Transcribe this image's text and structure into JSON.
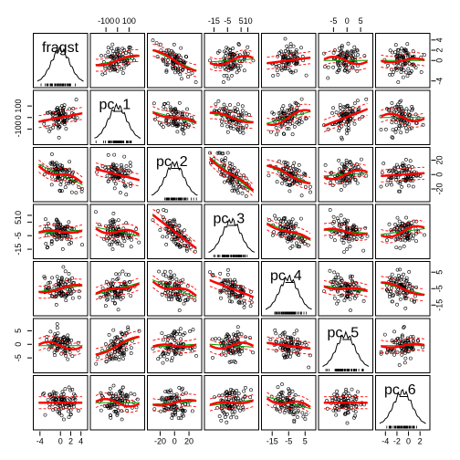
{
  "chart_data": {
    "type": "scatter",
    "variables": [
      "fragst",
      "pc_1",
      "pc_2",
      "pc_3",
      "pc_4",
      "pc_5",
      "pc_6"
    ],
    "axes": [
      {
        "ticks": [
          -4,
          0,
          2,
          4
        ],
        "range": [
          -4.5,
          4.5
        ]
      },
      {
        "ticks": [
          -100,
          0,
          100
        ],
        "range": [
          -200,
          200
        ]
      },
      {
        "ticks": [
          -20,
          0,
          20
        ],
        "range": [
          -32,
          32
        ]
      },
      {
        "ticks": [
          -15,
          -5,
          5,
          10
        ],
        "range": [
          -19,
          15
        ]
      },
      {
        "ticks": [
          -15,
          -5,
          5
        ],
        "range": [
          -19,
          9
        ]
      },
      {
        "ticks": [
          -5,
          0,
          5
        ],
        "range": [
          -9,
          8
        ]
      },
      {
        "ticks": [
          -4,
          -2,
          0,
          2
        ],
        "range": [
          -5,
          3
        ]
      }
    ],
    "tick_labels_top": [
      [
        "-100",
        "0",
        "100"
      ],
      [
        "-15",
        "-5",
        "5",
        "10"
      ],
      [
        "-5",
        "0",
        "5"
      ]
    ],
    "tick_labels_right": [
      [
        "-4",
        "0",
        "2",
        "4"
      ],
      [
        "-20",
        "0",
        "20"
      ],
      [
        "-15",
        "-5",
        "5"
      ]
    ],
    "tick_labels_bottom": [
      [
        "-4",
        "0",
        "2",
        "4"
      ],
      [
        "-20",
        "0",
        "20"
      ],
      [
        "-15",
        "-5",
        "5"
      ],
      [
        "-4",
        "-2",
        "0",
        "2"
      ]
    ],
    "tick_labels_left": [
      [
        "-100",
        "0",
        "100"
      ],
      [
        "-15",
        "-5",
        "5",
        "10"
      ],
      [
        "-5",
        "0",
        "5"
      ]
    ],
    "trend_slopes": [
      [
        0,
        0.15,
        -0.35,
        0.05,
        0.1,
        0.0,
        0.0
      ],
      [
        0.15,
        0,
        -0.2,
        -0.15,
        0.2,
        0.3,
        0.0
      ],
      [
        -0.35,
        -0.2,
        0,
        -0.6,
        -0.3,
        0.05,
        0.05
      ],
      [
        0.05,
        -0.15,
        -0.6,
        0,
        -0.3,
        -0.05,
        0.1
      ],
      [
        0.1,
        0.2,
        -0.3,
        -0.3,
        0,
        -0.1,
        -0.2
      ],
      [
        0.0,
        0.3,
        0.05,
        -0.05,
        -0.1,
        0,
        0.0
      ],
      [
        0.0,
        0.0,
        0.05,
        0.1,
        -0.2,
        0.0,
        0
      ]
    ],
    "series": [
      {
        "style": "points",
        "color": "#000000"
      },
      {
        "style": "linear fit",
        "color": "#00a000"
      },
      {
        "style": "smooth fit",
        "color": "#ff0000"
      },
      {
        "style": "spread band",
        "color": "#ff0000"
      }
    ],
    "grid": false
  }
}
